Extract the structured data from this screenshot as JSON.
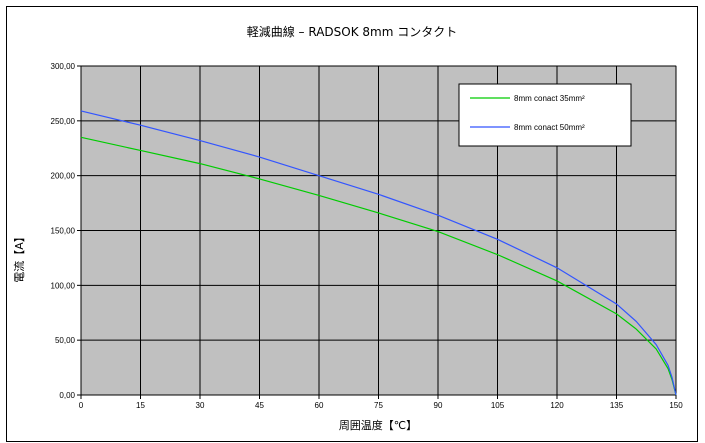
{
  "chart_data": {
    "type": "line",
    "title": "軽減曲線 – RADSOK 8mm コンタクト",
    "xlabel": "周囲温度【℃】",
    "ylabel": "電流【A】",
    "xlim": [
      0,
      150
    ],
    "ylim": [
      0,
      300
    ],
    "x_ticks": [
      "0",
      "15",
      "30",
      "45",
      "60",
      "75",
      "90",
      "105",
      "120",
      "135",
      "150"
    ],
    "y_ticks": [
      "0,00",
      "50,00",
      "100,00",
      "150,00",
      "200,00",
      "250,00",
      "300,00"
    ],
    "grid": true,
    "legend_position": "top-right",
    "plot_background": "#c0c0c0",
    "series": [
      {
        "name": "8mm conact 35mm²",
        "color": "#00cc00",
        "x": [
          0,
          15,
          30,
          45,
          60,
          75,
          90,
          105,
          120,
          135,
          140,
          145,
          148,
          149,
          150
        ],
        "y": [
          235,
          223,
          211,
          197,
          182,
          166,
          149,
          128,
          104,
          74,
          60,
          42,
          24,
          14,
          0
        ]
      },
      {
        "name": "8mm conact 50mm²",
        "color": "#3355ff",
        "x": [
          0,
          15,
          30,
          45,
          60,
          75,
          90,
          105,
          120,
          135,
          140,
          145,
          148,
          149,
          150
        ],
        "y": [
          259,
          246,
          232,
          217,
          200,
          183,
          164,
          142,
          116,
          83,
          67,
          46,
          27,
          16,
          0
        ]
      }
    ]
  }
}
